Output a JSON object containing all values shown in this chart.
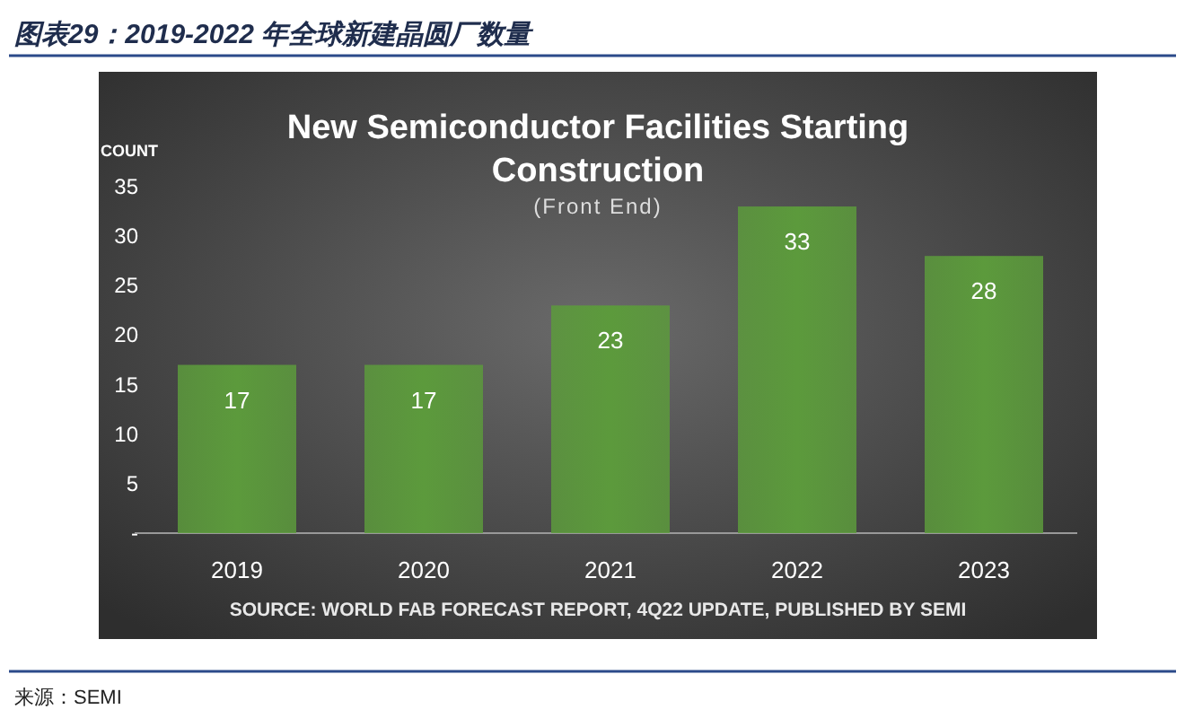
{
  "chart_data": {
    "type": "bar",
    "title": "New Semiconductor Facilities Starting Construction",
    "subtitle": "(Front End)",
    "ylabel": "COUNT",
    "categories": [
      "2019",
      "2020",
      "2021",
      "2022",
      "2023"
    ],
    "values": [
      17,
      17,
      23,
      33,
      28
    ],
    "color": "#5c9a3c",
    "ylim": [
      0,
      35
    ],
    "yticks": [
      {
        "value": 0,
        "label": "-"
      },
      5,
      10,
      15,
      20,
      25,
      30,
      35
    ],
    "data_labels": true,
    "grid": false,
    "annotations": [
      "图表29：2019-2022 年全球新建晶圆厂数量",
      "SOURCE: WORLD FAB FORECAST REPORT, 4Q22 UPDATE, PUBLISHED BY SEMI",
      "来源：SEMI"
    ]
  }
}
